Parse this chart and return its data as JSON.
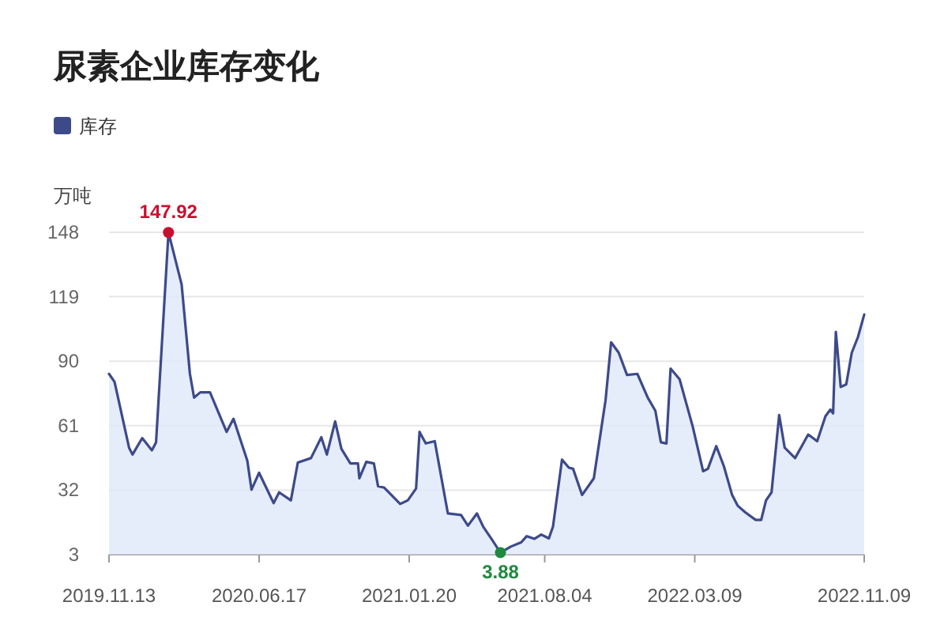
{
  "chart_data": {
    "type": "area",
    "title": "尿素企业库存变化",
    "ylabel": "万吨",
    "legend": "top left",
    "grid": "y",
    "xlim": [
      "2019-11-13",
      "2022-11-09"
    ],
    "xticks": [
      {
        "value": "2019-11-13",
        "label": "2019.11.13"
      },
      {
        "value": "2020-06-17",
        "label": "2020.06.17"
      },
      {
        "value": "2021-01-20",
        "label": "2021.01.20"
      },
      {
        "value": "2021-08-04",
        "label": "2021.08.04"
      },
      {
        "value": "2022-03-09",
        "label": "2022.03.09"
      },
      {
        "value": "2022-11-09",
        "label": "2022.11.09"
      }
    ],
    "ylim": [
      3,
      148
    ],
    "yticks": [
      3,
      32,
      61,
      90,
      119,
      148
    ],
    "x": [
      "2019-11-13",
      "2019-11-21",
      "2019-12-12",
      "2019-12-17",
      "2019-12-31",
      "2020-01-14",
      "2020-01-20",
      "2020-02-07",
      "2020-02-26",
      "2020-03-09",
      "2020-03-15",
      "2020-03-24",
      "2020-04-07",
      "2020-05-01",
      "2020-05-11",
      "2020-05-31",
      "2020-06-06",
      "2020-06-17",
      "2020-07-08",
      "2020-07-16",
      "2020-08-02",
      "2020-08-12",
      "2020-08-31",
      "2020-09-15",
      "2020-09-23",
      "2020-10-05",
      "2020-10-14",
      "2020-10-27",
      "2020-11-07",
      "2020-11-09",
      "2020-11-19",
      "2020-11-30",
      "2020-12-06",
      "2020-12-15",
      "2021-01-07",
      "2021-01-18",
      "2021-01-30",
      "2021-02-04",
      "2021-02-13",
      "2021-02-26",
      "2021-03-17",
      "2021-04-05",
      "2021-04-15",
      "2021-04-28",
      "2021-05-07",
      "2021-05-20",
      "2021-06-01",
      "2021-06-16",
      "2021-07-01",
      "2021-07-09",
      "2021-07-20",
      "2021-07-30",
      "2021-08-10",
      "2021-08-16",
      "2021-08-29",
      "2021-09-08",
      "2021-09-14",
      "2021-09-27",
      "2021-10-14",
      "2021-10-31",
      "2021-11-08",
      "2021-11-19",
      "2021-12-01",
      "2021-12-16",
      "2021-12-31",
      "2022-01-11",
      "2022-01-19",
      "2022-01-27",
      "2022-02-02",
      "2022-02-15",
      "2022-03-06",
      "2022-03-21",
      "2022-03-28",
      "2022-04-09",
      "2022-04-20",
      "2022-05-02",
      "2022-05-10",
      "2022-05-21",
      "2022-06-05",
      "2022-06-13",
      "2022-06-20",
      "2022-06-28",
      "2022-07-09",
      "2022-07-17",
      "2022-08-01",
      "2022-08-20",
      "2022-09-02",
      "2022-09-14",
      "2022-09-21",
      "2022-09-25",
      "2022-09-29",
      "2022-10-06",
      "2022-10-14",
      "2022-10-22",
      "2022-10-31",
      "2022-11-09"
    ],
    "series": [
      {
        "name": "库存",
        "color": "#3d4a8a",
        "values": [
          84.3,
          80.7,
          51.1,
          48,
          55.4,
          49.9,
          53.5,
          147.92,
          124.5,
          84.3,
          73.6,
          76,
          76,
          58.2,
          64.1,
          45.2,
          32.2,
          39.8,
          26.2,
          31,
          27.4,
          44.4,
          46.4,
          55.8,
          48,
          62.9,
          50.6,
          44,
          44,
          37.3,
          44.7,
          44,
          33.8,
          33.1,
          25.8,
          27.4,
          32.7,
          58.2,
          53,
          54,
          21.5,
          20.8,
          16,
          21.5,
          15.6,
          9.6,
          3.88,
          6.6,
          8.5,
          11.3,
          10.1,
          12,
          10.3,
          15.6,
          45.7,
          42.1,
          41.6,
          29.8,
          37.3,
          72.5,
          98.5,
          93.8,
          83.8,
          84.3,
          73.6,
          67.7,
          53.5,
          53,
          86.7,
          81.9,
          60.6,
          40.5,
          41.6,
          51.8,
          42.8,
          29.8,
          25,
          22,
          18.6,
          18.6,
          27.4,
          31,
          65.8,
          51.1,
          46.4,
          57,
          54,
          65.3,
          68.2,
          66.5,
          103.2,
          78.4,
          79.6,
          93.8,
          100.9,
          111
        ]
      }
    ],
    "annotations": [
      {
        "text": "147.92",
        "x": "2020-02-07",
        "y": 147.92
      },
      {
        "text": "3.88",
        "x": "2021-06-01",
        "y": 3.88
      }
    ]
  }
}
